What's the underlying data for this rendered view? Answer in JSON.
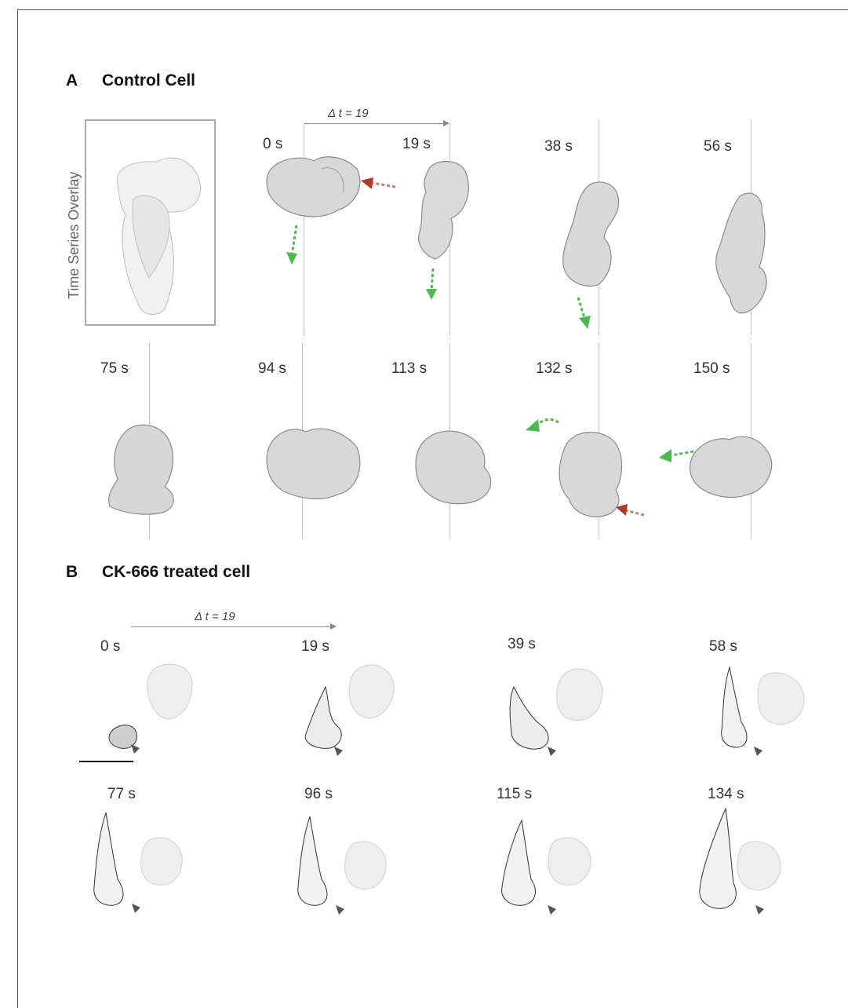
{
  "panel_a": {
    "letter": "A",
    "title": "Control Cell",
    "overlay_label": "Time Series Overlay",
    "delta": "Δ t = 19",
    "times_row1": [
      "0 s",
      "19 s",
      "38 s",
      "56 s"
    ],
    "times_row2": [
      "75 s",
      "94 s",
      "113 s",
      "132 s",
      "150 s"
    ]
  },
  "panel_b": {
    "letter": "B",
    "title": "CK-666 treated cell",
    "delta": "Δ t = 19",
    "times_row1": [
      "0 s",
      "19 s",
      "39 s",
      "58 s"
    ],
    "times_row2": [
      "77 s",
      "96 s",
      "115 s",
      "134 s"
    ]
  },
  "colors": {
    "green_arrow": "#4cbb4c",
    "red_arrow": "#b03a2e",
    "cell_fill": "#d6d6d6",
    "cell_stroke": "#8a8a8a"
  }
}
